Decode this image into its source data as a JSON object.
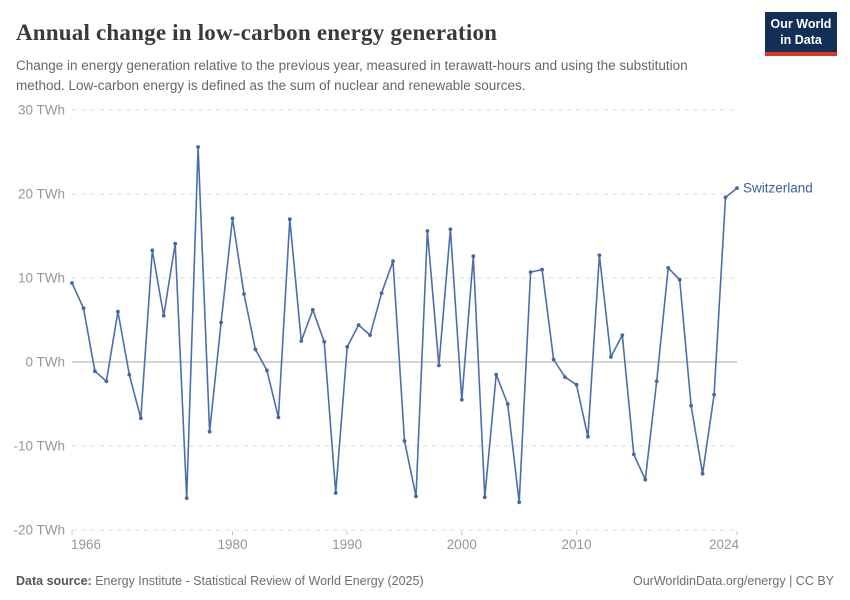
{
  "header": {
    "title": "Annual change in low-carbon energy generation",
    "subtitle": "Change in energy generation relative to the previous year, measured in terawatt-hours and using the substitution method. Low-carbon energy is defined as the sum of nuclear and renewable sources.",
    "logo": {
      "line1": "Our World",
      "line2": "in Data"
    }
  },
  "chart_data": {
    "type": "line",
    "title": "Annual change in low-carbon energy generation",
    "entity_label": "Switzerland",
    "unit": "TWh",
    "xlim": [
      1966,
      2024
    ],
    "ylim": [
      -20,
      30
    ],
    "grid": "dashed horizontal, solid zero line",
    "legend_position": "end-of-line label",
    "x": [
      1966,
      1967,
      1968,
      1969,
      1970,
      1971,
      1972,
      1973,
      1974,
      1975,
      1976,
      1977,
      1978,
      1979,
      1980,
      1981,
      1982,
      1983,
      1984,
      1985,
      1986,
      1987,
      1988,
      1989,
      1990,
      1991,
      1992,
      1993,
      1994,
      1995,
      1996,
      1997,
      1998,
      1999,
      2000,
      2001,
      2002,
      2003,
      2004,
      2005,
      2006,
      2007,
      2008,
      2009,
      2010,
      2011,
      2012,
      2013,
      2014,
      2015,
      2016,
      2017,
      2018,
      2019,
      2020,
      2021,
      2022,
      2023,
      2024
    ],
    "values": [
      9.4,
      6.4,
      -1.1,
      -2.3,
      6.0,
      -1.5,
      -6.7,
      13.3,
      5.5,
      14.1,
      -16.2,
      25.6,
      -8.3,
      4.7,
      17.1,
      8.1,
      1.5,
      -1.0,
      -6.6,
      17.0,
      2.5,
      6.2,
      2.4,
      -15.6,
      1.8,
      4.4,
      3.2,
      8.2,
      12.0,
      -9.4,
      -16.0,
      15.6,
      -0.4,
      15.8,
      -4.5,
      12.6,
      -16.1,
      -1.5,
      -5.0,
      -16.7,
      10.7,
      11.0,
      0.3,
      -1.8,
      -2.7,
      -8.9,
      12.7,
      0.6,
      3.2,
      -11.0,
      -14.0,
      -2.3,
      11.2,
      9.8,
      -5.2,
      -13.3,
      -3.9,
      19.6,
      20.7
    ],
    "yticks": [
      {
        "value": 30,
        "label": "30 TWh"
      },
      {
        "value": 20,
        "label": "20 TWh"
      },
      {
        "value": 10,
        "label": "10 TWh"
      },
      {
        "value": 0,
        "label": "0 TWh"
      },
      {
        "value": -10,
        "label": "-10 TWh"
      },
      {
        "value": -20,
        "label": "-20 TWh"
      }
    ],
    "xticks": [
      {
        "value": 1966,
        "label": "1966"
      },
      {
        "value": 1980,
        "label": "1980"
      },
      {
        "value": 1990,
        "label": "1990"
      },
      {
        "value": 2000,
        "label": "2000"
      },
      {
        "value": 2010,
        "label": "2010"
      },
      {
        "value": 2024,
        "label": "2024"
      }
    ],
    "colors": {
      "line": "#4d6fa9",
      "marker": "#4567a2",
      "gridline": "#dcdcdc",
      "zero_line": "#a8a8a8",
      "axis_tick": "#c8c8c8",
      "tick_label": "#969696",
      "entity_label": "#3d62a3"
    }
  },
  "footer": {
    "source_label": "Data source:",
    "source_text": "Energy Institute - Statistical Review of World Energy (2025)",
    "credit": "OurWorldinData.org/energy | CC BY"
  }
}
